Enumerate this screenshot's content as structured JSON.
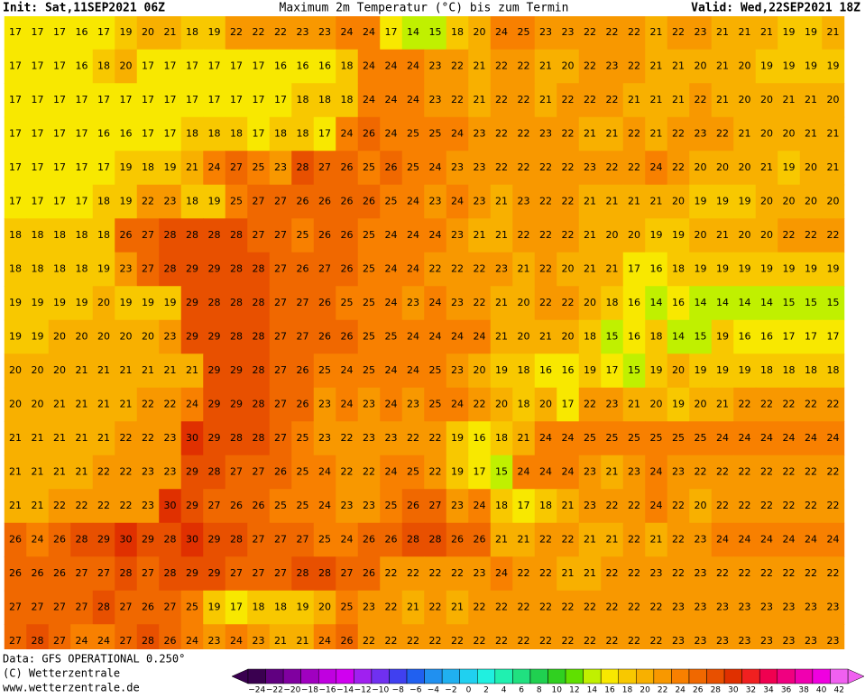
{
  "header": {
    "init": "Init: Sat,11SEP2021 06Z",
    "title": "Maximum 2m Temperatur (°C) bis zum Termin",
    "valid": "Valid: Wed,22SEP2021 18Z"
  },
  "footer": {
    "source": "Data: GFS OPERATIONAL 0.250°",
    "copyright": "(C) Wetterzentrale",
    "url": "www.wetterzentrale.de"
  },
  "colorbar": {
    "ticks": [
      {
        "value": -24,
        "label": "−24"
      },
      {
        "value": -22,
        "label": "−22"
      },
      {
        "value": -20,
        "label": "−20"
      },
      {
        "value": -18,
        "label": "−18"
      },
      {
        "value": -16,
        "label": "−16"
      },
      {
        "value": -14,
        "label": "−14"
      },
      {
        "value": -12,
        "label": "−12"
      },
      {
        "value": -10,
        "label": "−10"
      },
      {
        "value": -8,
        "label": "−8"
      },
      {
        "value": -6,
        "label": "−6"
      },
      {
        "value": -4,
        "label": "−4"
      },
      {
        "value": -2,
        "label": "−2"
      },
      0,
      2,
      4,
      6,
      8,
      10,
      12,
      14,
      16,
      18,
      20,
      22,
      24,
      26,
      28,
      30,
      32,
      34,
      36,
      38,
      40,
      42
    ],
    "colors": [
      "#3a0050",
      "#600080",
      "#8000a0",
      "#a000c0",
      "#c000e0",
      "#d000f0",
      "#a020f0",
      "#7030f0",
      "#4040f0",
      "#2060f0",
      "#2090f0",
      "#20b0f0",
      "#20d0f0",
      "#20f0e0",
      "#20f0b0",
      "#20e080",
      "#20d050",
      "#30d020",
      "#60e000",
      "#c0f000",
      "#f8e800",
      "#f8c800",
      "#f8b000",
      "#f89800",
      "#f88000",
      "#f06800",
      "#e85000",
      "#e03000",
      "#f02020",
      "#f00050",
      "#f00080",
      "#f000b0",
      "#f000e0",
      "#f060f0"
    ]
  },
  "grid": [
    [
      17,
      17,
      17,
      16,
      17,
      19,
      20,
      21,
      18,
      19,
      22,
      22,
      22,
      23,
      23,
      24,
      24,
      17,
      14,
      15,
      18,
      20,
      24,
      25,
      23,
      23,
      22,
      22,
      22,
      21,
      22,
      23,
      21,
      21,
      21,
      19,
      19,
      21
    ],
    [
      17,
      17,
      17,
      16,
      18,
      20,
      17,
      17,
      17,
      17,
      17,
      17,
      16,
      16,
      16,
      18,
      24,
      24,
      24,
      23,
      22,
      21,
      22,
      22,
      21,
      20,
      22,
      23,
      22,
      21,
      21,
      20,
      21,
      20,
      19,
      19,
      19,
      19
    ],
    [
      17,
      17,
      17,
      17,
      17,
      17,
      17,
      17,
      17,
      17,
      17,
      17,
      17,
      18,
      18,
      18,
      24,
      24,
      24,
      23,
      22,
      21,
      22,
      22,
      21,
      22,
      22,
      22,
      21,
      21,
      21,
      22,
      21,
      20,
      20,
      21,
      21,
      20
    ],
    [
      17,
      17,
      17,
      17,
      16,
      16,
      17,
      17,
      18,
      18,
      18,
      17,
      18,
      18,
      17,
      24,
      26,
      24,
      25,
      25,
      24,
      23,
      22,
      22,
      23,
      22,
      21,
      21,
      22,
      21,
      22,
      23,
      22,
      21,
      20,
      20,
      21,
      21
    ],
    [
      17,
      17,
      17,
      17,
      17,
      19,
      18,
      19,
      21,
      24,
      27,
      25,
      23,
      28,
      27,
      26,
      25,
      26,
      25,
      24,
      23,
      23,
      22,
      22,
      22,
      22,
      23,
      22,
      22,
      24,
      22,
      20,
      20,
      20,
      21,
      19,
      20,
      21
    ],
    [
      17,
      17,
      17,
      17,
      18,
      19,
      22,
      23,
      18,
      19,
      25,
      27,
      27,
      26,
      26,
      26,
      26,
      25,
      24,
      23,
      24,
      23,
      21,
      23,
      22,
      22,
      21,
      21,
      21,
      21,
      20,
      19,
      19,
      19,
      20,
      20,
      20,
      20
    ],
    [
      18,
      18,
      18,
      18,
      18,
      26,
      27,
      28,
      28,
      28,
      28,
      27,
      27,
      25,
      26,
      26,
      25,
      24,
      24,
      24,
      23,
      21,
      21,
      22,
      22,
      22,
      21,
      20,
      20,
      19,
      19,
      20,
      21,
      20,
      20,
      22,
      22,
      22
    ],
    [
      18,
      18,
      18,
      18,
      19,
      23,
      27,
      28,
      29,
      29,
      28,
      28,
      27,
      26,
      27,
      26,
      25,
      24,
      24,
      22,
      22,
      22,
      23,
      21,
      22,
      20,
      21,
      21,
      17,
      16,
      18,
      19,
      19,
      19,
      19,
      19,
      19,
      19
    ],
    [
      19,
      19,
      19,
      19,
      20,
      19,
      19,
      19,
      29,
      28,
      28,
      28,
      27,
      27,
      26,
      25,
      25,
      24,
      23,
      24,
      23,
      22,
      21,
      20,
      22,
      22,
      20,
      18,
      16,
      14,
      16,
      14,
      14,
      14,
      14,
      15,
      15,
      15
    ],
    [
      19,
      19,
      20,
      20,
      20,
      20,
      20,
      23,
      29,
      29,
      28,
      28,
      27,
      27,
      26,
      26,
      25,
      25,
      24,
      24,
      24,
      24,
      21,
      20,
      21,
      20,
      18,
      15,
      16,
      18,
      14,
      15,
      19,
      16,
      16,
      17,
      17,
      17
    ],
    [
      20,
      20,
      20,
      21,
      21,
      21,
      21,
      21,
      21,
      29,
      29,
      28,
      27,
      26,
      25,
      24,
      25,
      24,
      24,
      25,
      23,
      20,
      19,
      18,
      16,
      16,
      19,
      17,
      15,
      19,
      20,
      19,
      19,
      19,
      18,
      18,
      18,
      18
    ],
    [
      20,
      20,
      21,
      21,
      21,
      21,
      22,
      22,
      24,
      29,
      29,
      28,
      27,
      26,
      23,
      24,
      23,
      24,
      23,
      25,
      24,
      22,
      20,
      18,
      20,
      17,
      22,
      23,
      21,
      20,
      19,
      20,
      21,
      22,
      22,
      22,
      22,
      22
    ],
    [
      21,
      21,
      21,
      21,
      21,
      22,
      22,
      23,
      30,
      29,
      28,
      28,
      27,
      25,
      23,
      22,
      23,
      23,
      22,
      22,
      19,
      16,
      18,
      21,
      24,
      24,
      25,
      25,
      25,
      25,
      25,
      25,
      24,
      24,
      24,
      24,
      24,
      24
    ],
    [
      21,
      21,
      21,
      21,
      22,
      22,
      23,
      23,
      29,
      28,
      27,
      27,
      26,
      25,
      24,
      22,
      22,
      24,
      25,
      22,
      19,
      17,
      15,
      24,
      24,
      24,
      23,
      21,
      23,
      24,
      23,
      22,
      22,
      22,
      22,
      22,
      22,
      22
    ],
    [
      21,
      21,
      22,
      22,
      22,
      22,
      23,
      30,
      29,
      27,
      26,
      26,
      25,
      25,
      24,
      23,
      23,
      25,
      26,
      27,
      23,
      24,
      18,
      17,
      18,
      21,
      23,
      22,
      22,
      24,
      22,
      20,
      22,
      22,
      22,
      22,
      22,
      22
    ],
    [
      26,
      24,
      26,
      28,
      29,
      30,
      29,
      28,
      30,
      29,
      28,
      27,
      27,
      27,
      25,
      24,
      26,
      26,
      28,
      28,
      26,
      26,
      21,
      21,
      22,
      22,
      21,
      21,
      22,
      21,
      22,
      23,
      24,
      24,
      24,
      24,
      24,
      24
    ],
    [
      26,
      26,
      26,
      27,
      27,
      28,
      27,
      28,
      29,
      29,
      27,
      27,
      27,
      28,
      28,
      27,
      26,
      22,
      22,
      22,
      22,
      23,
      24,
      22,
      22,
      21,
      21,
      22,
      22,
      23,
      22,
      23,
      22,
      22,
      22,
      22,
      22,
      22
    ],
    [
      27,
      27,
      27,
      27,
      28,
      27,
      26,
      27,
      25,
      19,
      17,
      18,
      18,
      19,
      20,
      25,
      23,
      22,
      21,
      22,
      21,
      22,
      22,
      22,
      22,
      22,
      22,
      22,
      22,
      22,
      23,
      23,
      23,
      23,
      23,
      23,
      23,
      23
    ],
    [
      27,
      28,
      27,
      24,
      24,
      27,
      28,
      26,
      24,
      23,
      24,
      23,
      21,
      21,
      24,
      26,
      22,
      22,
      22,
      22,
      22,
      22,
      22,
      22,
      22,
      22,
      22,
      22,
      22,
      22,
      23,
      23,
      23,
      23,
      23,
      23,
      23,
      23
    ]
  ]
}
